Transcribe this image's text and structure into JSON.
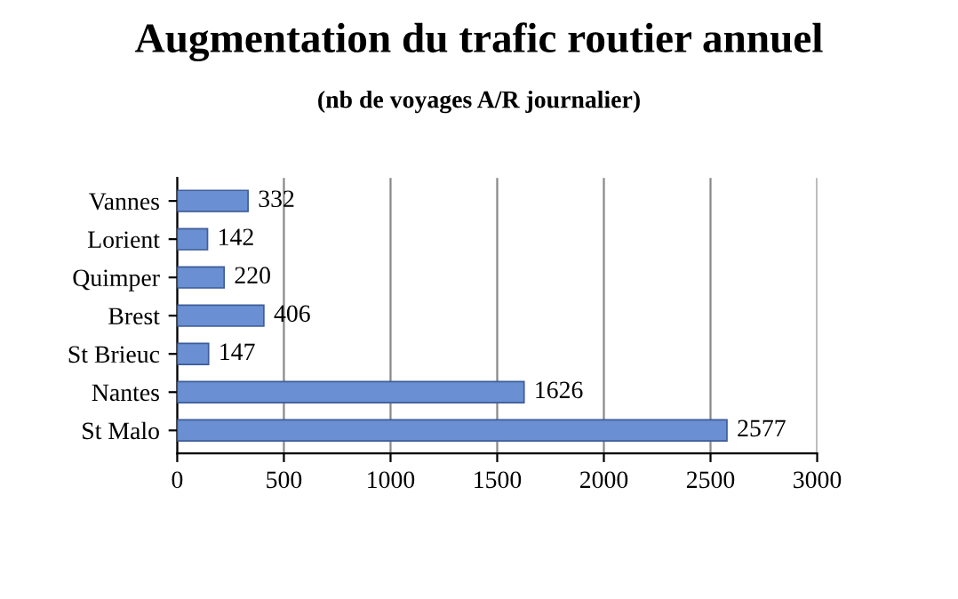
{
  "chart_data": {
    "type": "bar",
    "orientation": "horizontal",
    "title": "Augmentation du trafic routier annuel",
    "subtitle": "(nb de voyages A/R journalier)",
    "categories": [
      "Vannes",
      "Lorient",
      "Quimper",
      "Brest",
      "St Brieuc",
      "Nantes",
      "St Malo"
    ],
    "values": [
      332,
      142,
      220,
      406,
      147,
      1626,
      2577
    ],
    "color": "#6a8fd2",
    "xlim": [
      0,
      3000
    ],
    "xticks": [
      0,
      500,
      1000,
      1500,
      2000,
      2500,
      3000
    ],
    "grid": "x",
    "data_labels": true
  }
}
